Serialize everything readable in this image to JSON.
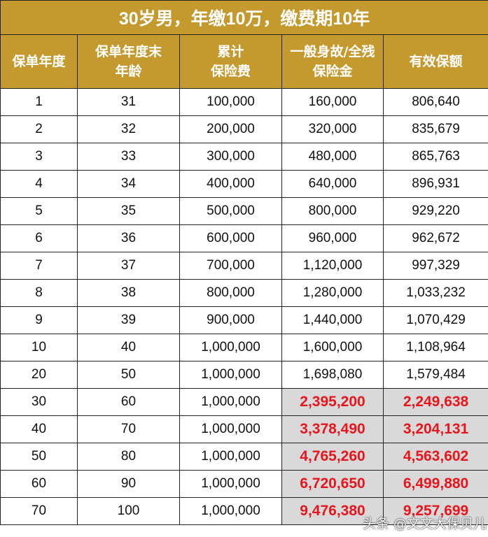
{
  "title": "30岁男，年缴10万，缴费期10年",
  "headers": [
    "保单年度",
    "保单年度末\n年龄",
    "累计\n保险费",
    "一般身故/全残\n保险金",
    "有效保额"
  ],
  "highlight_color": "#E8161C",
  "header_bg": "#C49A2E",
  "rows": [
    [
      "1",
      "31",
      "100,000",
      "160,000",
      "806,640"
    ],
    [
      "2",
      "32",
      "200,000",
      "320,000",
      "835,679"
    ],
    [
      "3",
      "33",
      "300,000",
      "480,000",
      "865,763"
    ],
    [
      "4",
      "34",
      "400,000",
      "640,000",
      "896,931"
    ],
    [
      "5",
      "35",
      "500,000",
      "800,000",
      "929,220"
    ],
    [
      "6",
      "36",
      "600,000",
      "960,000",
      "962,672"
    ],
    [
      "7",
      "37",
      "700,000",
      "1,120,000",
      "997,329"
    ],
    [
      "8",
      "38",
      "800,000",
      "1,280,000",
      "1,033,232"
    ],
    [
      "9",
      "39",
      "900,000",
      "1,440,000",
      "1,070,429"
    ],
    [
      "10",
      "40",
      "1,000,000",
      "1,600,000",
      "1,108,964"
    ],
    [
      "20",
      "50",
      "1,000,000",
      "1,698,080",
      "1,579,484"
    ],
    [
      "30",
      "60",
      "1,000,000",
      "2,395,200",
      "2,249,638"
    ],
    [
      "40",
      "70",
      "1,000,000",
      "3,378,490",
      "3,204,131"
    ],
    [
      "50",
      "80",
      "1,000,000",
      "4,765,260",
      "4,563,602"
    ],
    [
      "60",
      "90",
      "1,000,000",
      "6,720,650",
      "6,499,880"
    ],
    [
      "70",
      "100",
      "1,000,000",
      "9,476,380",
      "9,257,699"
    ]
  ],
  "highlight_from_row": 11,
  "watermark": "头条 @文文大保贝儿"
}
